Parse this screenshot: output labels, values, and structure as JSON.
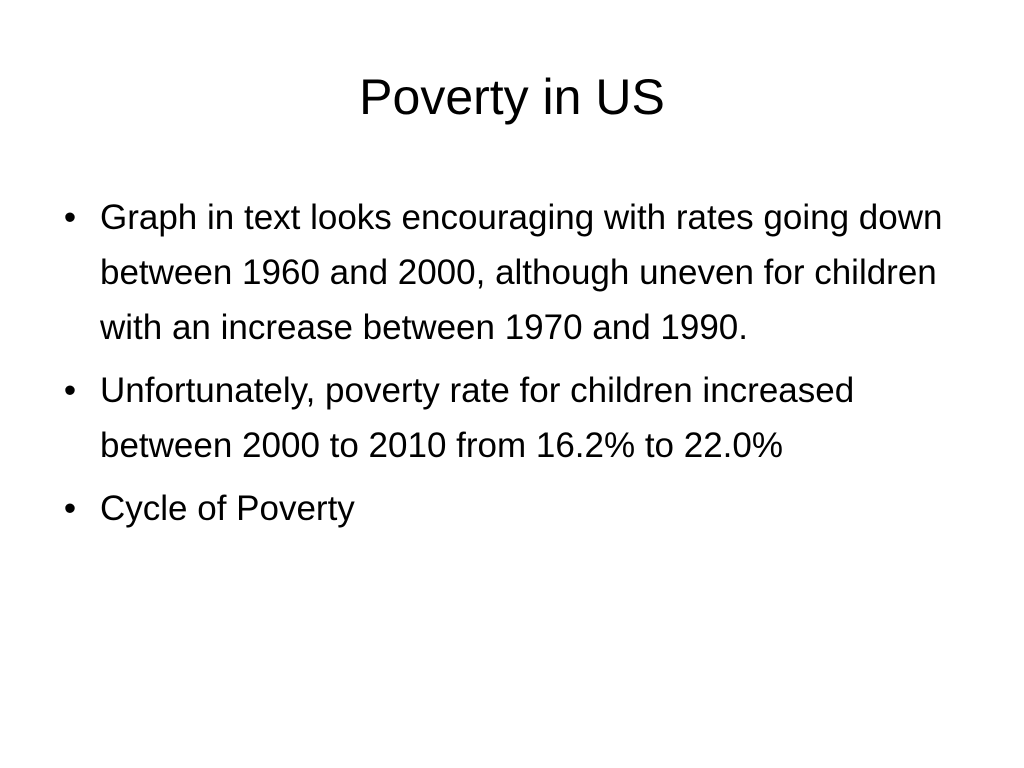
{
  "slide": {
    "title": "Poverty in US",
    "bullet_glyph": "•",
    "bullets": [
      {
        "text": "Graph in text looks encouraging with rates going down  between 1960 and 2000, although uneven for children with an increase between 1970 and 1990."
      },
      {
        "text": "Unfortunately, poverty rate for children increased between 2000  to 2010 from 16.2% to 22.0%"
      },
      {
        "text": "Cycle of Poverty"
      }
    ]
  }
}
